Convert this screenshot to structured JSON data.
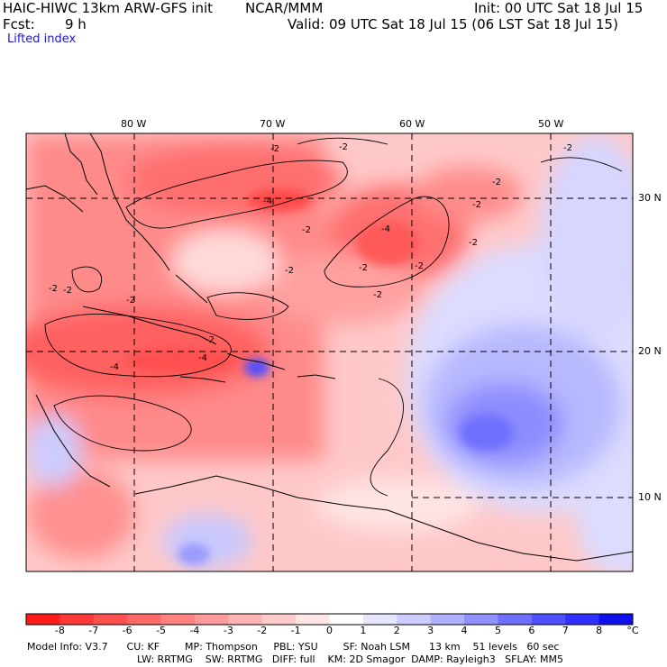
{
  "header": {
    "model_title": "HAIC-HIWC 13km ARW-GFS init",
    "agency": "NCAR/MMM",
    "init": "Init: 00 UTC Sat 18 Jul 15",
    "fcst_label": "Fcst:",
    "fcst_value": "9 h",
    "valid": "Valid: 09 UTC Sat 18 Jul 15 (06 LST Sat 18 Jul 15)",
    "field_name": "Lifted index"
  },
  "map": {
    "lon_labels": [
      "80 W",
      "70 W",
      "60 W",
      "50 W"
    ],
    "lat_labels": [
      "30 N",
      "20 N",
      "10 N"
    ],
    "contour_labels": [
      "-2",
      "-2",
      "-2",
      "-2",
      "-2",
      "-2",
      "-4",
      "-2",
      "-2",
      "-2",
      "-4",
      "-2",
      "-2",
      "-2",
      "-2",
      "-4",
      "-2",
      "-4",
      "-2"
    ]
  },
  "colorbar": {
    "ticks": [
      "-8",
      "-7",
      "-6",
      "-5",
      "-4",
      "-3",
      "-2",
      "-1",
      "0",
      "1",
      "2",
      "3",
      "4",
      "5",
      "6",
      "7",
      "8"
    ],
    "unit": "°C",
    "colors": [
      "#ff1a1a",
      "#ff3838",
      "#ff5050",
      "#ff6868",
      "#ff8282",
      "#ff9a9a",
      "#ffb4b4",
      "#ffcccc",
      "#ffe6e6",
      "#ffffff",
      "#e6e6ff",
      "#ccccff",
      "#b0b0ff",
      "#9090ff",
      "#7070ff",
      "#5050ff",
      "#3030ff",
      "#1010ee"
    ]
  },
  "model_info": {
    "line1": "Model Info: V3.7      CU: KF        MP: Thompson     PBL: YSU        SF: Noah LSM      13 km    51 levels   60 sec",
    "line2": "LW: RRTMG    SW: RRTMG   DIFF: full    KM: 2D Smagor  DAMP: Rayleigh3   SFLAY: MM5"
  }
}
